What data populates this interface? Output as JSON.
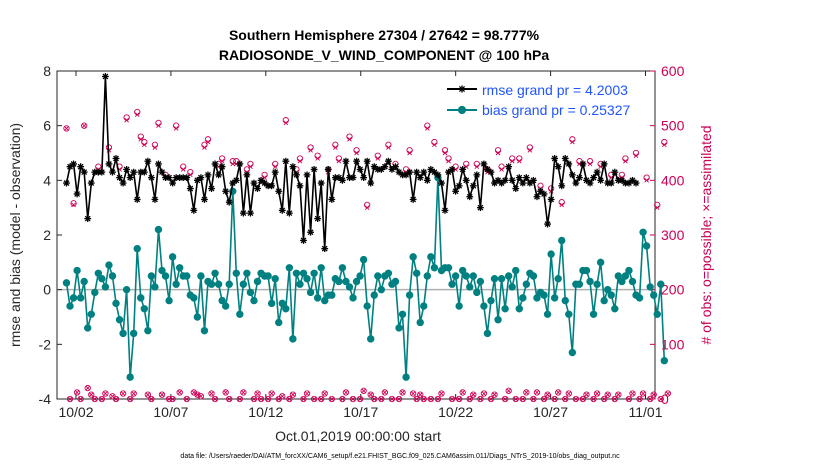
{
  "chart_data": {
    "type": "line",
    "title": "Southern Hemisphere 27304 / 27642 = 98.777%",
    "subtitle": "RADIOSONDE_V_WIND_COMPONENT @ 100 hPa",
    "xlabel": "Oct.01,2019 00:00:00 start",
    "ylabel": "rmse and bias (model - observation)",
    "ylabel_right": "# of obs: o=possible; ×=assimilated",
    "footer": "data file: /Users/raeder/DAI/ATM_forcXX/CAM6_setup/f.e21.FHIST_BGC.f09_025.CAM6assim.011/Diags_NTrS_2019-10/obs_diag_output.nc",
    "xlim": [
      0.5,
      32.0
    ],
    "ylim": [
      -4,
      8
    ],
    "ylim_right": [
      0,
      600
    ],
    "x_ticks": [
      1.5,
      6.5,
      11.5,
      16.5,
      21.5,
      26.5,
      31.5
    ],
    "x_tick_labels": [
      "10/02",
      "10/07",
      "10/12",
      "10/17",
      "10/22",
      "10/27",
      "11/01"
    ],
    "y_ticks": [
      -4,
      -2,
      0,
      2,
      4,
      6,
      8
    ],
    "y_tick_labels": [
      "-4",
      "-2",
      "0",
      "2",
      "4",
      "6",
      "8"
    ],
    "y_ticks_right": [
      0,
      100,
      200,
      300,
      400,
      500,
      600
    ],
    "y_tick_labels_right": [
      "0",
      "100",
      "200",
      "300",
      "400",
      "500",
      "600"
    ],
    "zero_line": 0,
    "colors": {
      "rmse": "#000000",
      "bias": "#008080",
      "obs": "#cc0055",
      "right_axis": "#cc0055",
      "legend_text": "#1f55ff",
      "zero_line": "#b0b0b0"
    },
    "series": [
      {
        "name": "rmse grand pr = 4.2003",
        "axis": "left",
        "marker": "asterisk",
        "values": [
          3.9,
          4.5,
          4.6,
          3.5,
          4.5,
          4.3,
          2.6,
          3.9,
          4.3,
          4.3,
          4.3,
          7.8,
          4.6,
          4.3,
          4.8,
          4.1,
          3.9,
          4.4,
          4.1,
          4.3,
          3.3,
          4.3,
          4.3,
          4.7,
          4.1,
          3.3,
          4.6,
          4.3,
          4.1,
          4.1,
          3.9,
          4.1,
          4.1,
          4.1,
          4.1,
          3.7,
          2.9,
          4.0,
          4.1,
          3.3,
          4.2,
          3.7,
          4.6,
          4.2,
          4.5,
          3.6,
          3.2,
          3.9,
          4.0,
          4.6,
          2.8,
          4.2,
          2.8,
          3.9,
          3.7,
          4.0,
          3.9,
          3.8,
          3.8,
          4.3,
          3.6,
          2.9,
          4.7,
          2.8,
          4.5,
          4.2,
          3.8,
          1.8,
          4.2,
          2.1,
          4.4,
          2.6,
          3.9,
          1.5,
          4.4,
          3.3,
          4.1,
          4.1,
          4.0,
          4.7,
          4.1,
          4.1,
          4.7,
          4.4,
          4.1,
          4.7,
          3.9,
          4.5,
          4.4,
          4.4,
          4.5,
          4.7,
          4.4,
          4.5,
          4.3,
          4.2,
          4.2,
          4.3,
          3.3,
          4.3,
          4.1,
          4.3,
          4.0,
          4.4,
          4.3,
          4.2,
          3.9,
          2.9,
          4.3,
          4.4,
          3.6,
          3.8,
          4.4,
          4.0,
          3.4,
          3.8,
          4.2,
          3.0,
          4.6,
          4.4,
          4.3,
          3.9,
          4.0,
          3.9,
          4.0,
          4.5,
          4.0,
          3.7,
          4.1,
          3.9,
          4.1,
          3.9,
          4.0,
          3.4,
          3.6,
          3.5,
          2.4,
          3.3,
          4.8,
          4.5,
          3.8,
          4.8,
          4.6,
          4.2,
          3.9,
          4.1,
          4.6,
          4.0,
          3.9,
          4.1,
          4.3,
          4.0,
          4.6,
          3.9,
          3.9,
          4.3,
          4.0,
          4.0,
          3.9,
          3.9,
          4.0,
          3.9
        ]
      },
      {
        "name": "bias grand pr = 0.25327",
        "axis": "left",
        "marker": "circle",
        "values": [
          0.25,
          -0.6,
          -0.3,
          0.7,
          -0.3,
          0.3,
          -1.4,
          -0.9,
          -0.1,
          0.6,
          0.4,
          0.1,
          0.9,
          0.5,
          -0.5,
          -1.1,
          -1.6,
          0.0,
          -3.2,
          -1.6,
          1.5,
          -0.3,
          -0.7,
          -1.5,
          0.5,
          0.1,
          2.2,
          0.7,
          0.5,
          -0.4,
          1.2,
          0.2,
          0.8,
          0.5,
          0.5,
          -0.2,
          -0.3,
          -1.0,
          0.5,
          -1.5,
          0.3,
          0.2,
          0.6,
          0.2,
          -0.4,
          -0.6,
          0.2,
          3.6,
          0.6,
          -0.9,
          0.2,
          0.6,
          -0.1,
          -0.4,
          0.3,
          0.6,
          0.5,
          0.5,
          -0.5,
          0.4,
          -1.2,
          -0.5,
          -0.7,
          0.8,
          -1.8,
          0.6,
          0.2,
          0.6,
          0.4,
          -0.1,
          0.6,
          -0.3,
          0.8,
          -0.4,
          -0.2,
          -0.2,
          0.4,
          0.3,
          0.8,
          0.3,
          0.1,
          -0.3,
          0.3,
          0.5,
          1.1,
          -0.6,
          -1.8,
          -0.2,
          0.5,
          0.0,
          0.5,
          0.6,
          0.2,
          0.3,
          -1.4,
          -0.9,
          -3.2,
          -0.2,
          1.2,
          0.6,
          -1.2,
          -0.6,
          0.5,
          1.2,
          0.8,
          4.1,
          0.7,
          0.8,
          0.8,
          0.2,
          0.5,
          -0.6,
          0.7,
          0.5,
          0.1,
          0.5,
          -0.1,
          0.3,
          -0.6,
          -1.6,
          -0.4,
          0.4,
          -1.1,
          0.4,
          -0.7,
          0.5,
          0.1,
          0.7,
          -0.7,
          -0.3,
          0.2,
          0.6,
          0.5,
          -0.3,
          -0.1,
          -0.2,
          -0.9,
          1.3,
          -0.3,
          0.4,
          1.8,
          -0.4,
          -0.9,
          -2.3,
          0.2,
          0.2,
          0.7,
          0.7,
          0.3,
          -0.9,
          0.2,
          1.0,
          -0.4,
          0.0,
          -0.2,
          -0.7,
          0.5,
          0.3,
          0.5,
          0.7,
          0.3,
          -0.2,
          -0.3,
          2.1,
          1.6,
          0.1,
          -0.2,
          -0.9,
          0.2,
          -2.6
        ]
      },
      {
        "name": "obs possible",
        "axis": "right",
        "marker": "o",
        "values": [
          495,
          0,
          358,
          12,
          0,
          500,
          20,
          8,
          0,
          425,
          0,
          10,
          460,
          5,
          0,
          425,
          10,
          515,
          0,
          10,
          525,
          480,
          470,
          8,
          0,
          465,
          505,
          8,
          410,
          0,
          0,
          500,
          12,
          425,
          0,
          415,
          12,
          8,
          5,
          465,
          475,
          10,
          0,
          430,
          440,
          12,
          0,
          435,
          435,
          0,
          12,
          420,
          430,
          0,
          10,
          0,
          410,
          0,
          10,
          430,
          0,
          5,
          510,
          0,
          8,
          420,
          440,
          0,
          10,
          460,
          0,
          445,
          0,
          10,
          420,
          0,
          465,
          440,
          0,
          12,
          480,
          0,
          455,
          0,
          15,
          355,
          8,
          0,
          445,
          0,
          12,
          465,
          0,
          430,
          0,
          12,
          420,
          455,
          10,
          0,
          8,
          0,
          500,
          0,
          470,
          0,
          10,
          455,
          440,
          0,
          425,
          0,
          12,
          430,
          0,
          8,
          430,
          0,
          10,
          420,
          0,
          8,
          455,
          425,
          0,
          15,
          440,
          0,
          440,
          0,
          12,
          460,
          0,
          12,
          390,
          0,
          8,
          385,
          0,
          12,
          360,
          0,
          10,
          475,
          0,
          435,
          0,
          8,
          435,
          0,
          10,
          430,
          0,
          8,
          410,
          0,
          8,
          410,
          440,
          0,
          10,
          450,
          0,
          10,
          405,
          0,
          8,
          355,
          0,
          470,
          10
        ]
      },
      {
        "name": "obs assimilated",
        "axis": "right",
        "marker": "x",
        "values": [
          495,
          0,
          355,
          12,
          0,
          500,
          20,
          8,
          0,
          420,
          0,
          10,
          455,
          5,
          0,
          420,
          10,
          510,
          0,
          10,
          520,
          475,
          465,
          8,
          0,
          460,
          500,
          8,
          405,
          0,
          0,
          495,
          12,
          420,
          0,
          410,
          12,
          8,
          5,
          460,
          470,
          10,
          0,
          425,
          435,
          12,
          0,
          430,
          430,
          0,
          12,
          415,
          425,
          0,
          10,
          0,
          405,
          0,
          10,
          425,
          0,
          5,
          505,
          0,
          8,
          415,
          435,
          0,
          10,
          455,
          0,
          440,
          0,
          10,
          415,
          0,
          460,
          435,
          0,
          12,
          475,
          0,
          450,
          0,
          15,
          350,
          8,
          0,
          440,
          0,
          12,
          460,
          0,
          425,
          0,
          12,
          415,
          450,
          10,
          0,
          8,
          0,
          495,
          0,
          465,
          0,
          10,
          450,
          435,
          0,
          420,
          0,
          12,
          425,
          0,
          8,
          425,
          0,
          10,
          415,
          0,
          8,
          450,
          420,
          0,
          15,
          435,
          0,
          435,
          0,
          12,
          455,
          0,
          12,
          385,
          0,
          8,
          380,
          0,
          12,
          355,
          0,
          10,
          470,
          0,
          430,
          0,
          8,
          430,
          0,
          10,
          425,
          0,
          8,
          405,
          0,
          8,
          405,
          435,
          0,
          10,
          445,
          0,
          10,
          400,
          0,
          8,
          350,
          0,
          465,
          10
        ]
      }
    ],
    "legend": [
      {
        "label": "rmse grand pr = 4.2003",
        "series": 0
      },
      {
        "label": "bias grand pr = 0.25327",
        "series": 1
      }
    ]
  }
}
